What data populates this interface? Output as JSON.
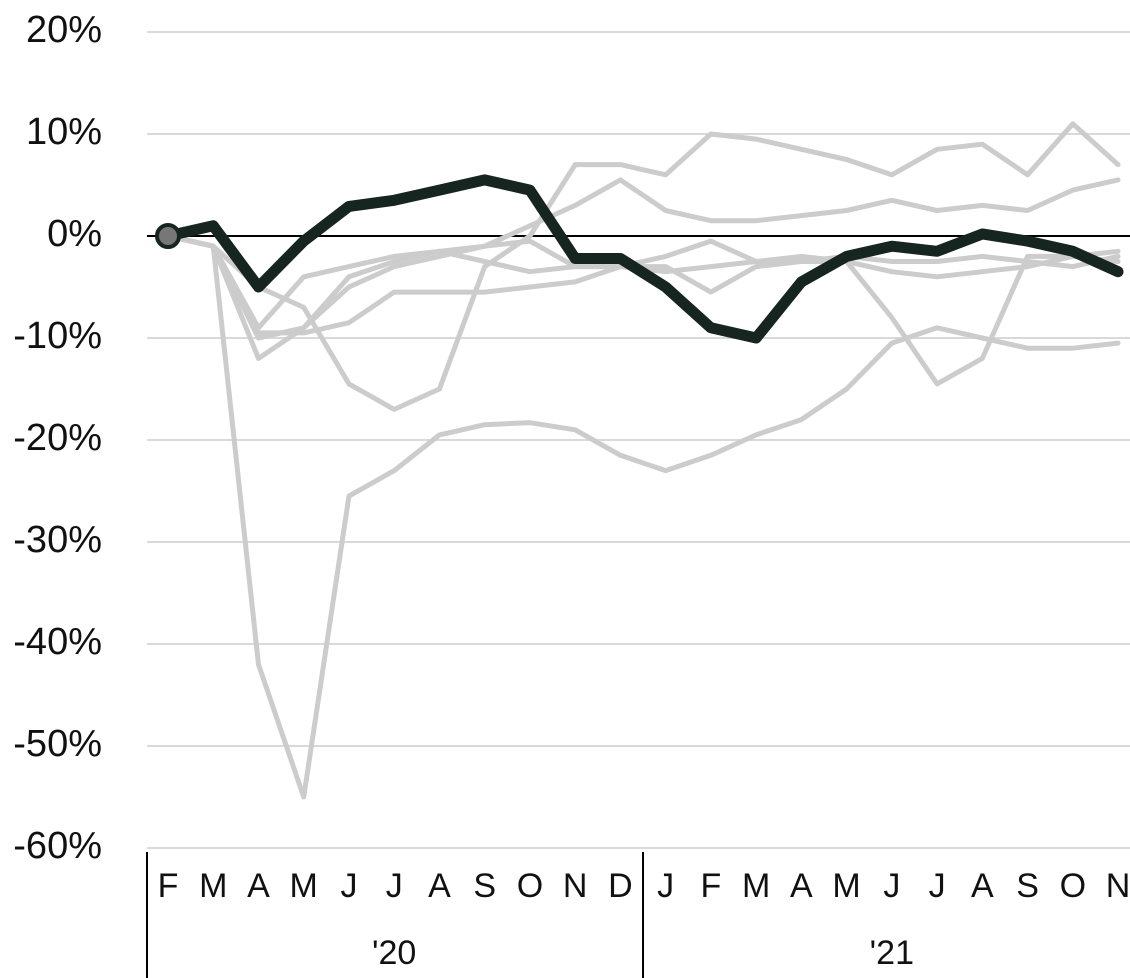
{
  "chart_data": {
    "type": "line",
    "categories": [
      "F",
      "M",
      "A",
      "M",
      "J",
      "J",
      "A",
      "S",
      "O",
      "N",
      "D",
      "J",
      "F",
      "M",
      "A",
      "M",
      "J",
      "J",
      "A",
      "S",
      "O",
      "N"
    ],
    "groups": [
      {
        "label": "'20",
        "span": 11
      },
      {
        "label": "'21",
        "span": 11
      }
    ],
    "series": [
      {
        "color": "#cccccc",
        "values": [
          0,
          -1,
          -5,
          -7,
          -14.5,
          -17,
          -15,
          -3,
          0,
          7,
          7,
          6,
          10,
          9.5,
          8.5,
          7.5,
          6,
          8.5,
          9,
          6,
          11,
          7
        ]
      },
      {
        "color": "#cccccc",
        "values": [
          0,
          -1,
          -10,
          -9,
          -5,
          -3,
          -2,
          -1,
          1,
          3,
          5.5,
          2.5,
          1.5,
          1.5,
          2,
          2.5,
          3.5,
          2.5,
          3,
          2.5,
          4.5,
          5.5
        ]
      },
      {
        "color": "#cccccc",
        "values": [
          0,
          -1,
          -42,
          -55,
          -25.5,
          -23,
          -19.5,
          -18.5,
          -18.3,
          -19,
          -21.5,
          -23,
          -21.5,
          -19.5,
          -18,
          -15,
          -10.5,
          -9,
          -10,
          -11,
          -11,
          -10.5
        ]
      },
      {
        "color": "#cccccc",
        "values": [
          0,
          -1,
          -12,
          -9,
          -4,
          -2.5,
          -1.5,
          -1,
          -0.5,
          -3,
          -3,
          -2,
          -0.5,
          -2.5,
          -2,
          -2.5,
          -3.5,
          -4,
          -3.5,
          -3,
          -2,
          -1.5
        ]
      },
      {
        "color": "#cccccc",
        "values": [
          0,
          -1,
          -9,
          -4,
          -3,
          -2,
          -1.5,
          -2.5,
          -3.5,
          -3,
          -3,
          -3,
          -5.5,
          -3,
          -2.5,
          -2.5,
          -8,
          -14.5,
          -12,
          -2,
          -2,
          -2.5
        ]
      },
      {
        "color": "#cccccc",
        "values": [
          0,
          -1,
          -9.5,
          -9.5,
          -8.5,
          -5.5,
          -5.5,
          -5.5,
          -5,
          -4.5,
          -3,
          -3.5,
          -3,
          -2.5,
          -2.5,
          -2,
          -2.5,
          -2.5,
          -2,
          -2.5,
          -3,
          -2
        ]
      },
      {
        "color": "#16251f",
        "values": [
          0,
          1,
          -5,
          -0.5,
          2.9,
          3.5,
          4.5,
          5.5,
          4.5,
          -2.2,
          -2.2,
          -5,
          -9,
          -10,
          -4.5,
          -2,
          -1,
          -1.5,
          0.2,
          -0.5,
          -1.5,
          -3.5
        ]
      }
    ],
    "ylim": [
      -60,
      20
    ],
    "yticks": [
      {
        "value": 20,
        "label": "20%"
      },
      {
        "value": 10,
        "label": "10%"
      },
      {
        "value": 0,
        "label": "0%"
      },
      {
        "value": -10,
        "label": "-10%"
      },
      {
        "value": -20,
        "label": "-20%"
      },
      {
        "value": -30,
        "label": "-30%"
      },
      {
        "value": -40,
        "label": "-40%"
      },
      {
        "value": -50,
        "label": "-50%"
      },
      {
        "value": -60,
        "label": "-60%"
      }
    ],
    "grid": true
  }
}
